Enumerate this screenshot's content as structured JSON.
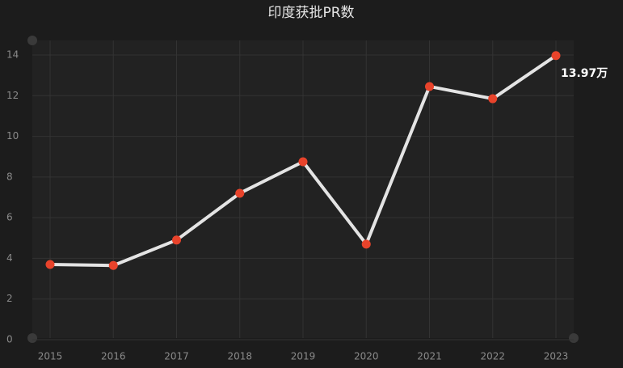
{
  "chart_data": {
    "type": "line",
    "title": "印度获批PR数",
    "categories": [
      "2015",
      "2016",
      "2017",
      "2018",
      "2019",
      "2020",
      "2021",
      "2022",
      "2023"
    ],
    "series": [
      {
        "color": "#e4e4e4",
        "values": [
          3.7,
          3.65,
          4.9,
          7.2,
          8.75,
          4.7,
          12.45,
          11.85,
          13.97
        ],
        "value_labels": [
          null,
          null,
          null,
          null,
          null,
          null,
          null,
          null,
          "13.97万"
        ]
      }
    ],
    "marker_color": "#e8432b",
    "ylim": [
      0,
      14
    ],
    "yticks": [
      0,
      2,
      4,
      6,
      8,
      10,
      12,
      14
    ],
    "grid": true
  }
}
